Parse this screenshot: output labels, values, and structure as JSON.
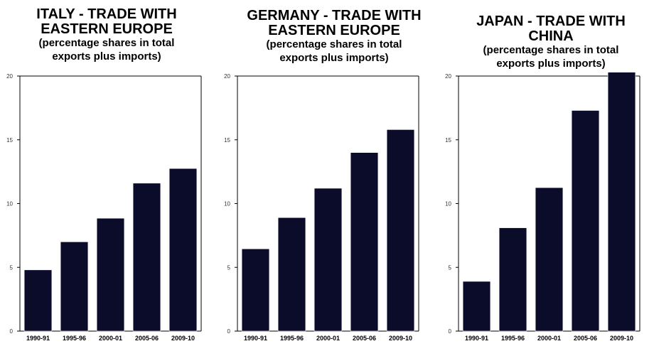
{
  "colors": {
    "bar": "#0b0b2a",
    "axis": "#000000"
  },
  "chart_data": [
    {
      "type": "bar",
      "title_lines": [
        "ITALY - TRADE WITH",
        "EASTERN EUROPE"
      ],
      "subtitle_lines": [
        "(percentage shares in total",
        "exports plus imports)"
      ],
      "categories": [
        "1990-91",
        "1995-96",
        "2000-01",
        "2005-06",
        "2009-10"
      ],
      "values": [
        4.8,
        7.0,
        8.85,
        11.6,
        12.75
      ],
      "ylim": [
        0,
        20
      ],
      "yticks": [
        "0",
        "5",
        "10",
        "15",
        "20"
      ],
      "xlabel": "",
      "ylabel": ""
    },
    {
      "type": "bar",
      "title_lines": [
        "GERMANY - TRADE WITH",
        "EASTERN EUROPE"
      ],
      "subtitle_lines": [
        "(percentage shares in total",
        "exports plus imports)"
      ],
      "categories": [
        "1990-91",
        "1995-96",
        "2000-01",
        "2005-06",
        "2009-10"
      ],
      "values": [
        6.45,
        8.9,
        11.2,
        14.0,
        15.8
      ],
      "ylim": [
        0,
        20
      ],
      "yticks": [
        "0",
        "5",
        "10",
        "15",
        "20"
      ],
      "xlabel": "",
      "ylabel": ""
    },
    {
      "type": "bar",
      "title_lines": [
        "JAPAN - TRADE WITH",
        "CHINA"
      ],
      "subtitle_lines": [
        "(percentage shares in total",
        "exports plus imports)"
      ],
      "categories": [
        "1990-91",
        "1995-96",
        "2000-01",
        "2005-06",
        "2009-10"
      ],
      "values": [
        3.9,
        8.1,
        11.25,
        17.3,
        20.6
      ],
      "ylim": [
        0,
        20
      ],
      "yticks": [
        "0",
        "5",
        "10",
        "15",
        "20"
      ],
      "xlabel": "",
      "ylabel": ""
    }
  ]
}
